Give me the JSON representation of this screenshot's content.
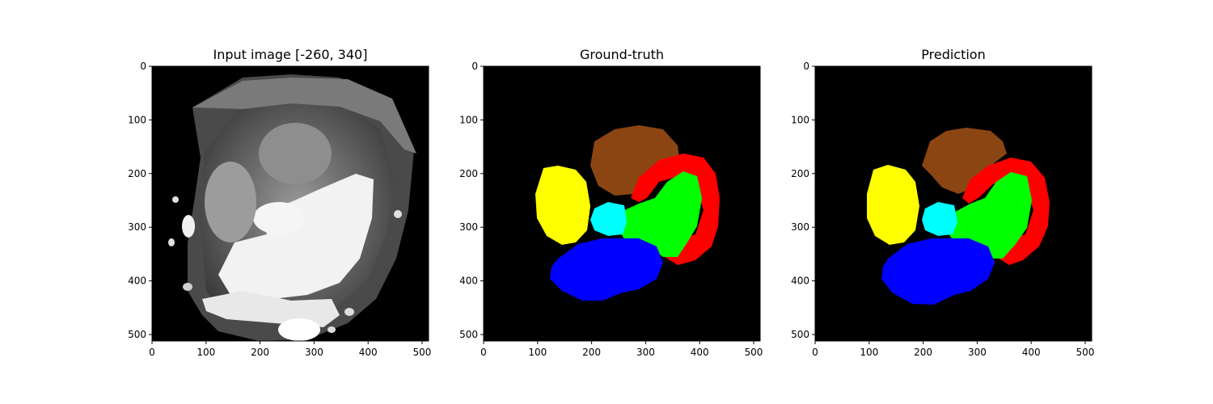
{
  "panels": [
    {
      "title": "Input image [-260, 340]",
      "kind": "ct"
    },
    {
      "title": "Ground-truth",
      "kind": "segmentation"
    },
    {
      "title": "Prediction",
      "kind": "segmentation"
    }
  ],
  "axes": {
    "x_ticks": [
      "0",
      "100",
      "200",
      "300",
      "400",
      "500"
    ],
    "y_ticks": [
      "0",
      "100",
      "200",
      "300",
      "400",
      "500"
    ],
    "x_range": [
      0,
      511
    ],
    "y_range": [
      0,
      511
    ],
    "y_inverted": true
  },
  "colors": {
    "background": "#000000",
    "brown": "#8b4513",
    "red": "#ff0000",
    "green": "#00ff00",
    "yellow": "#ffff00",
    "cyan": "#00ffff",
    "blue": "#0000ff"
  }
}
